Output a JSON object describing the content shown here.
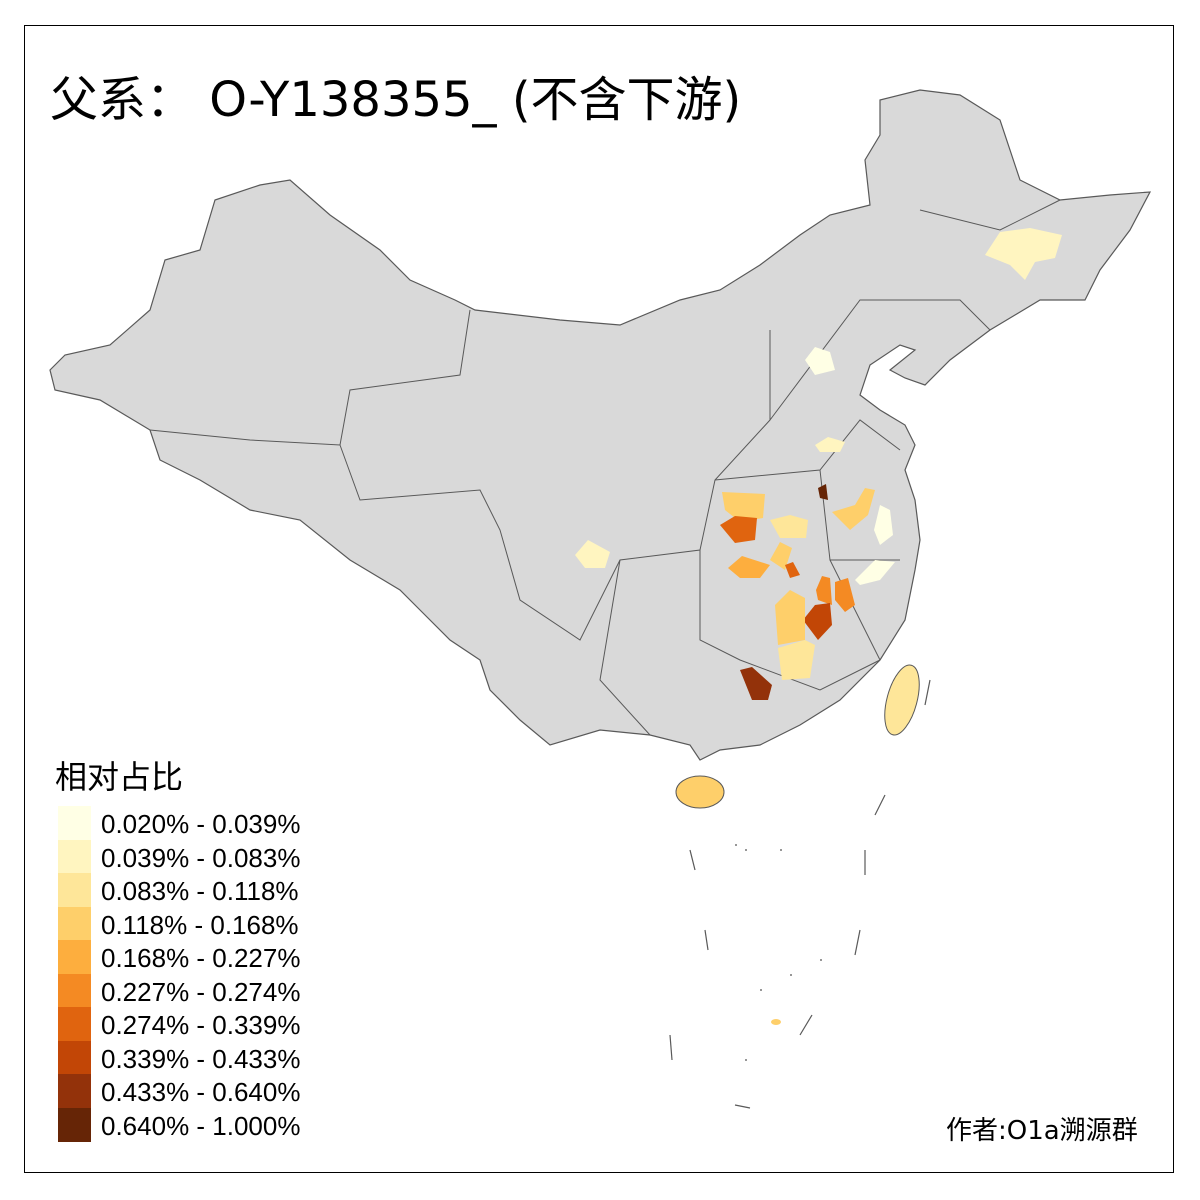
{
  "title": "父系： O-Y138355_ (不含下游)",
  "legend": {
    "title": "相对占比",
    "bins": [
      {
        "label": "0.020% - 0.039%",
        "color": "#FFFFE5"
      },
      {
        "label": "0.039% - 0.083%",
        "color": "#FFF5C0"
      },
      {
        "label": "0.083% - 0.118%",
        "color": "#FEE699"
      },
      {
        "label": "0.118% - 0.168%",
        "color": "#FECF6A"
      },
      {
        "label": "0.168% - 0.227%",
        "color": "#FDAE3E"
      },
      {
        "label": "0.227% - 0.274%",
        "color": "#F48A23"
      },
      {
        "label": "0.274% - 0.339%",
        "color": "#E0640F"
      },
      {
        "label": "0.339% - 0.433%",
        "color": "#C24606"
      },
      {
        "label": "0.433% - 0.640%",
        "color": "#93320A"
      },
      {
        "label": "0.640% - 1.000%",
        "color": "#662506"
      }
    ]
  },
  "map_colors": {
    "no_data": "#D9D9D9",
    "border": "#595959"
  },
  "author": "作者:O1a溯源群"
}
